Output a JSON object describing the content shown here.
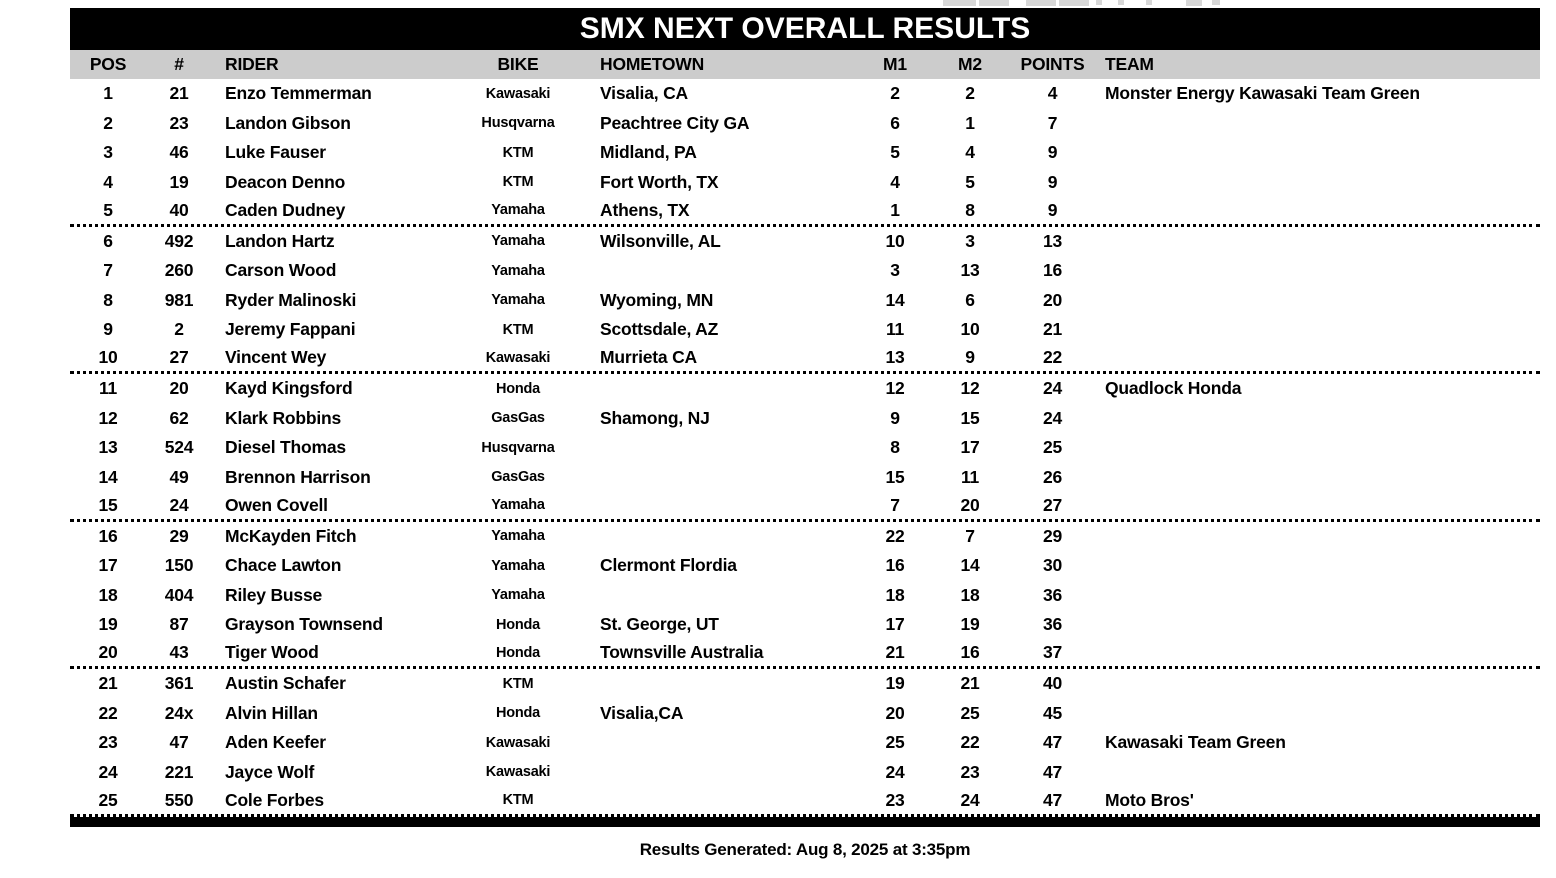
{
  "title": "SMX NEXT OVERALL RESULTS",
  "columns": [
    "POS",
    "#",
    "RIDER",
    "BIKE",
    "HOMETOWN",
    "M1",
    "M2",
    "POINTS",
    "TEAM"
  ],
  "rows": [
    {
      "pos": "1",
      "num": "21",
      "rider": "Enzo Temmerman",
      "bike": "Kawasaki",
      "hometown": "Visalia, CA",
      "m1": "2",
      "m2": "2",
      "points": "4",
      "team": "Monster Energy Kawasaki Team Green"
    },
    {
      "pos": "2",
      "num": "23",
      "rider": "Landon Gibson",
      "bike": "Husqvarna",
      "hometown": "Peachtree City GA",
      "m1": "6",
      "m2": "1",
      "points": "7",
      "team": ""
    },
    {
      "pos": "3",
      "num": "46",
      "rider": "Luke Fauser",
      "bike": "KTM",
      "hometown": "Midland, PA",
      "m1": "5",
      "m2": "4",
      "points": "9",
      "team": ""
    },
    {
      "pos": "4",
      "num": "19",
      "rider": "Deacon Denno",
      "bike": "KTM",
      "hometown": "Fort Worth, TX",
      "m1": "4",
      "m2": "5",
      "points": "9",
      "team": ""
    },
    {
      "pos": "5",
      "num": "40",
      "rider": "Caden Dudney",
      "bike": "Yamaha",
      "hometown": "Athens, TX",
      "m1": "1",
      "m2": "8",
      "points": "9",
      "team": ""
    },
    {
      "pos": "6",
      "num": "492",
      "rider": "Landon Hartz",
      "bike": "Yamaha",
      "hometown": "Wilsonville, AL",
      "m1": "10",
      "m2": "3",
      "points": "13",
      "team": ""
    },
    {
      "pos": "7",
      "num": "260",
      "rider": "Carson Wood",
      "bike": "Yamaha",
      "hometown": "",
      "m1": "3",
      "m2": "13",
      "points": "16",
      "team": ""
    },
    {
      "pos": "8",
      "num": "981",
      "rider": "Ryder Malinoski",
      "bike": "Yamaha",
      "hometown": "Wyoming, MN",
      "m1": "14",
      "m2": "6",
      "points": "20",
      "team": ""
    },
    {
      "pos": "9",
      "num": "2",
      "rider": "Jeremy Fappani",
      "bike": "KTM",
      "hometown": "Scottsdale, AZ",
      "m1": "11",
      "m2": "10",
      "points": "21",
      "team": ""
    },
    {
      "pos": "10",
      "num": "27",
      "rider": "Vincent Wey",
      "bike": "Kawasaki",
      "hometown": "Murrieta CA",
      "m1": "13",
      "m2": "9",
      "points": "22",
      "team": ""
    },
    {
      "pos": "11",
      "num": "20",
      "rider": "Kayd Kingsford",
      "bike": "Honda",
      "hometown": "",
      "m1": "12",
      "m2": "12",
      "points": "24",
      "team": "Quadlock Honda"
    },
    {
      "pos": "12",
      "num": "62",
      "rider": "Klark Robbins",
      "bike": "GasGas",
      "hometown": "Shamong, NJ",
      "m1": "9",
      "m2": "15",
      "points": "24",
      "team": ""
    },
    {
      "pos": "13",
      "num": "524",
      "rider": "Diesel Thomas",
      "bike": "Husqvarna",
      "hometown": "",
      "m1": "8",
      "m2": "17",
      "points": "25",
      "team": ""
    },
    {
      "pos": "14",
      "num": "49",
      "rider": "Brennon Harrison",
      "bike": "GasGas",
      "hometown": "",
      "m1": "15",
      "m2": "11",
      "points": "26",
      "team": ""
    },
    {
      "pos": "15",
      "num": "24",
      "rider": "Owen Covell",
      "bike": "Yamaha",
      "hometown": "",
      "m1": "7",
      "m2": "20",
      "points": "27",
      "team": ""
    },
    {
      "pos": "16",
      "num": "29",
      "rider": "McKayden Fitch",
      "bike": "Yamaha",
      "hometown": "",
      "m1": "22",
      "m2": "7",
      "points": "29",
      "team": ""
    },
    {
      "pos": "17",
      "num": "150",
      "rider": "Chace Lawton",
      "bike": "Yamaha",
      "hometown": "Clermont Flordia",
      "m1": "16",
      "m2": "14",
      "points": "30",
      "team": ""
    },
    {
      "pos": "18",
      "num": "404",
      "rider": "Riley Busse",
      "bike": "Yamaha",
      "hometown": "",
      "m1": "18",
      "m2": "18",
      "points": "36",
      "team": ""
    },
    {
      "pos": "19",
      "num": "87",
      "rider": "Grayson Townsend",
      "bike": "Honda",
      "hometown": "St. George, UT",
      "m1": "17",
      "m2": "19",
      "points": "36",
      "team": ""
    },
    {
      "pos": "20",
      "num": "43",
      "rider": "Tiger Wood",
      "bike": "Honda",
      "hometown": "Townsville Australia",
      "m1": "21",
      "m2": "16",
      "points": "37",
      "team": ""
    },
    {
      "pos": "21",
      "num": "361",
      "rider": "Austin Schafer",
      "bike": "KTM",
      "hometown": "",
      "m1": "19",
      "m2": "21",
      "points": "40",
      "team": ""
    },
    {
      "pos": "22",
      "num": "24x",
      "rider": "Alvin Hillan",
      "bike": "Honda",
      "hometown": "Visalia,CA",
      "m1": "20",
      "m2": "25",
      "points": "45",
      "team": ""
    },
    {
      "pos": "23",
      "num": "47",
      "rider": "Aden Keefer",
      "bike": "Kawasaki",
      "hometown": "",
      "m1": "25",
      "m2": "22",
      "points": "47",
      "team": "Kawasaki Team Green"
    },
    {
      "pos": "24",
      "num": "221",
      "rider": "Jayce Wolf",
      "bike": "Kawasaki",
      "hometown": "",
      "m1": "24",
      "m2": "23",
      "points": "47",
      "team": ""
    },
    {
      "pos": "25",
      "num": "550",
      "rider": "Cole Forbes",
      "bike": "KTM",
      "hometown": "",
      "m1": "23",
      "m2": "24",
      "points": "47",
      "team": "Moto Bros'"
    }
  ],
  "footer": "Results Generated: Aug 8, 2025 at 3:35pm",
  "colors": {
    "title_bg": "#000000",
    "title_text": "#ffffff",
    "header_bg": "#cccccc",
    "body_text": "#000000",
    "toolbar_fragment": "#d8d8d8"
  }
}
